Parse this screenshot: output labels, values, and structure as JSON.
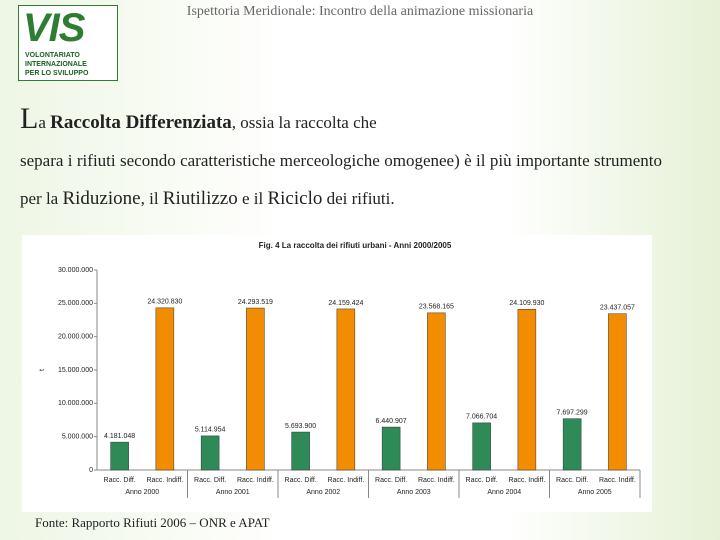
{
  "header": {
    "title": "Ispettoria Meridionale: Incontro della animazione missionaria",
    "logo": {
      "mark": "VIS",
      "lines": [
        "VOLONTARIATO",
        "INTERNAZIONALE",
        "PER LO SVILUPPO"
      ]
    }
  },
  "body": {
    "line1": [
      "L",
      "a ",
      "Raccolta Differenziata",
      ", ossia la raccolta che"
    ],
    "rest": [
      "separa i rifiuti secondo caratteristiche merceologiche omogenee) è il più importante strumento per la ",
      "Riduzione",
      ", il ",
      "Riutilizzo",
      " e il ",
      "Riciclo",
      " dei rifiuti."
    ]
  },
  "chart_data": {
    "type": "bar",
    "title": "Fig. 4  La raccolta dei rifiuti urbani - Anni 2000/2005",
    "y_label": "t",
    "categories": [
      "Anno 2000",
      "Anno 2001",
      "Anno 2002",
      "Anno 2003",
      "Anno 2004",
      "Anno 2005"
    ],
    "series": [
      {
        "name": "Racc. Diff.",
        "color": "#2e8b57",
        "values": [
          4181048,
          5114954,
          5693900,
          6440907,
          7066704,
          7697299
        ],
        "value_labels": [
          "4.181.048",
          "5.114.954",
          "5.693.900",
          "6.440.907",
          "7.066.704",
          "7.697.299"
        ]
      },
      {
        "name": "Racc. Indiff.",
        "color": "#f28c00",
        "values": [
          24320830,
          24293519,
          24159424,
          23568165,
          24109930,
          23437057
        ],
        "value_labels": [
          "24.320.830",
          "24.293.519",
          "24.159.424",
          "23.568.165",
          "24.109.930",
          "23.437.057"
        ]
      }
    ],
    "ylim": [
      0,
      30000000
    ],
    "yticks": [
      0,
      {
        "value": 5000000,
        "label": "5.000.000"
      },
      {
        "value": 10000000,
        "label": "10.000.000"
      },
      {
        "value": 15000000,
        "label": "15.000.000"
      },
      {
        "value": 20000000,
        "label": "20.000.000"
      },
      {
        "value": 25000000,
        "label": "25.000.000"
      },
      {
        "value": 30000000,
        "label": "30.000.000"
      }
    ],
    "grid": false
  },
  "footer": "Fonte: Rapporto Rifiuti 2006 – ONR e APAT"
}
